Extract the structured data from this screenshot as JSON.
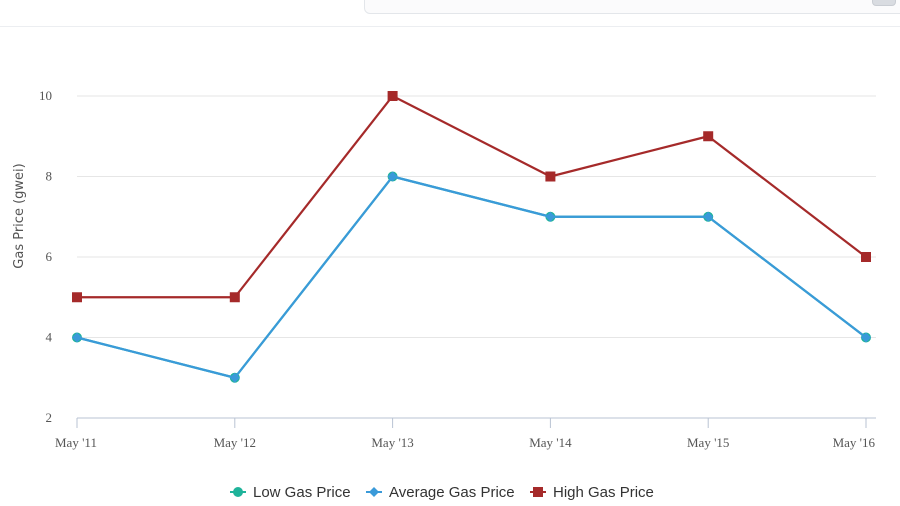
{
  "chart_data": {
    "type": "line",
    "categories": [
      "May '11",
      "May '12",
      "May '13",
      "May '14",
      "May '15",
      "May '16"
    ],
    "ylabel": "Gas Price (gwei)",
    "ylim": [
      2,
      10
    ],
    "yticks": [
      "2",
      "4",
      "6",
      "8",
      "10"
    ],
    "grid": true,
    "legend": "bottom-center",
    "series": [
      {
        "name": "Low Gas Price",
        "color": "#1fb39a",
        "marker": "circle",
        "values": [
          4,
          3,
          8,
          7,
          7,
          4
        ]
      },
      {
        "name": "Average Gas Price",
        "color": "#3a9ad9",
        "marker": "diamond",
        "values": [
          4,
          3,
          8,
          7,
          7,
          4
        ]
      },
      {
        "name": "High Gas Price",
        "color": "#a52a2a",
        "marker": "square",
        "values": [
          5,
          5,
          10,
          8,
          9,
          6
        ]
      }
    ]
  }
}
